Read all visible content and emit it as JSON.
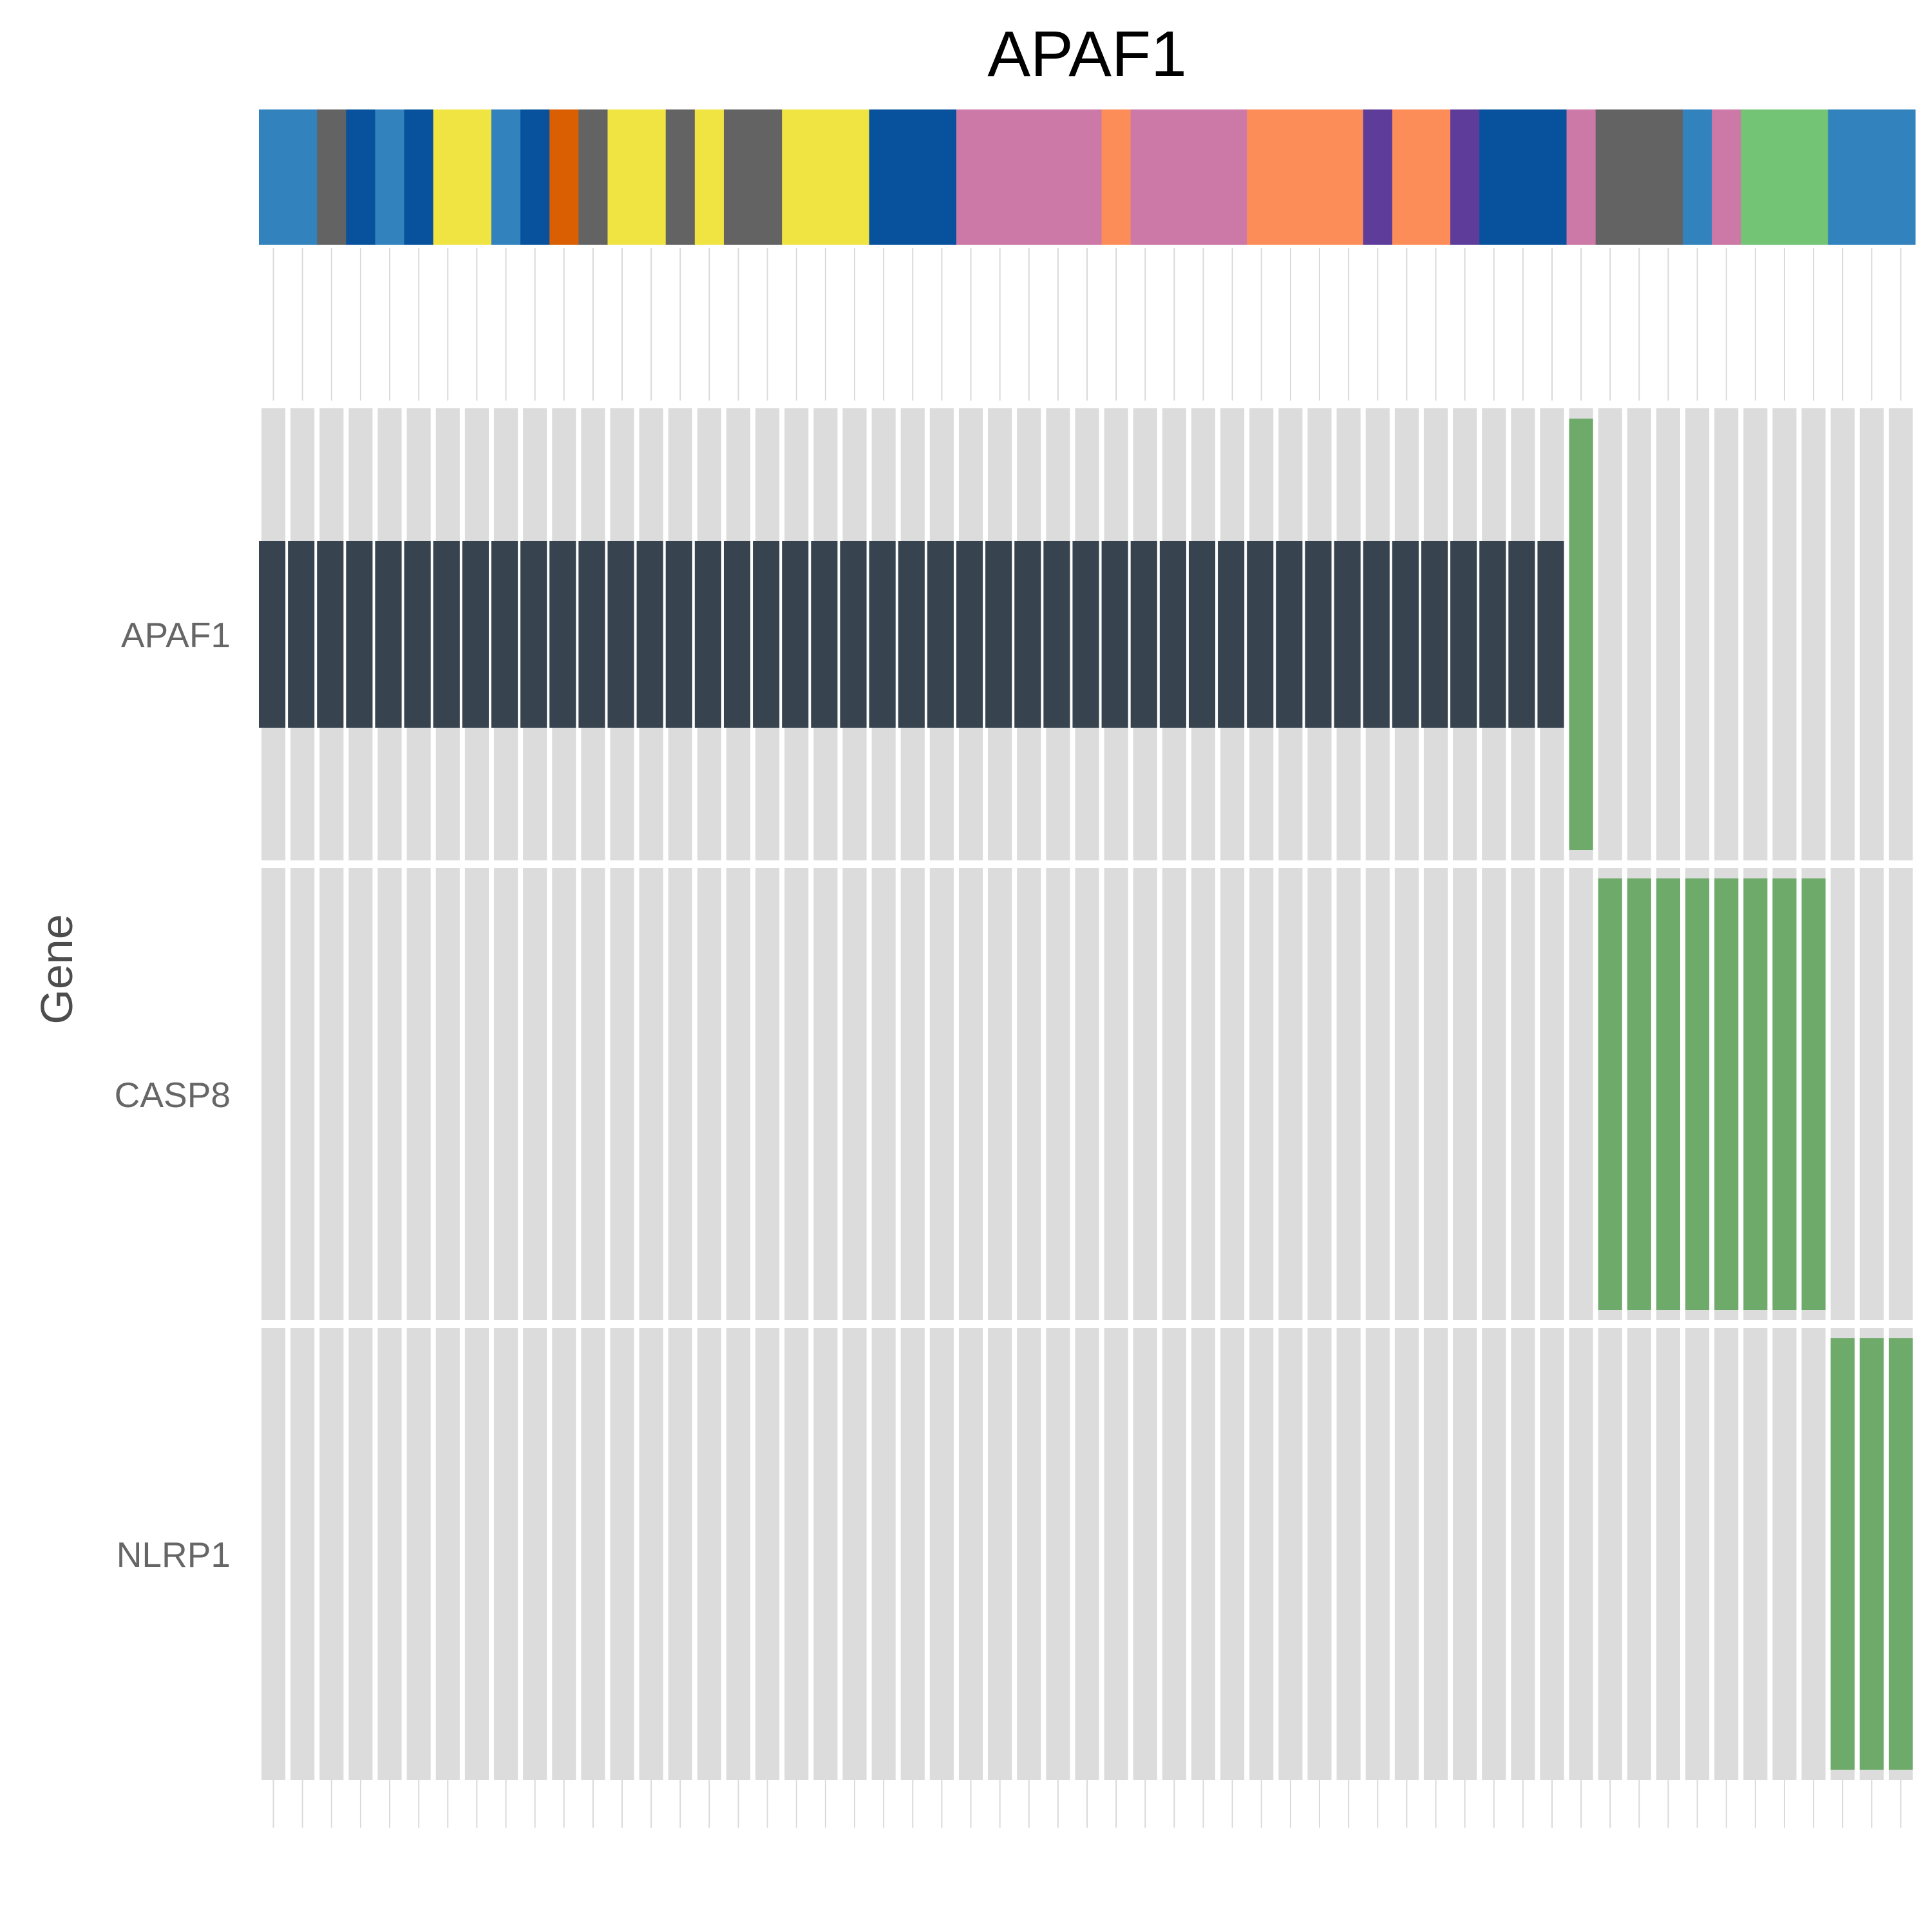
{
  "chart_data": {
    "type": "heatmap",
    "title": "APAF1",
    "ylabel": "Gene",
    "genes": [
      "APAF1",
      "CASP8",
      "NLRP1"
    ],
    "sample_count": 57,
    "colors": {
      "background_cell": "#dcdcdc",
      "mutation_bar": "#37444f",
      "amplification": "#6eab6b",
      "guide_line": "#d9d9d9"
    },
    "rows": [
      {
        "gene": "APAF1",
        "mutation_samples": [
          0,
          45
        ],
        "amplification_samples": [
          45,
          46
        ]
      },
      {
        "gene": "CASP8",
        "mutation_samples": [],
        "amplification_samples": [
          46,
          54
        ]
      },
      {
        "gene": "NLRP1",
        "mutation_samples": [],
        "amplification_samples": [
          54,
          57
        ]
      }
    ],
    "annotation_track": [
      {
        "count": 2,
        "color": "#3182bd"
      },
      {
        "count": 1,
        "color": "#636363"
      },
      {
        "count": 1,
        "color": "#08519c"
      },
      {
        "count": 1,
        "color": "#3182bd"
      },
      {
        "count": 1,
        "color": "#08519c"
      },
      {
        "count": 2,
        "color": "#f0e442"
      },
      {
        "count": 1,
        "color": "#3182bd"
      },
      {
        "count": 1,
        "color": "#08519c"
      },
      {
        "count": 1,
        "color": "#d95f02"
      },
      {
        "count": 1,
        "color": "#636363"
      },
      {
        "count": 2,
        "color": "#f0e442"
      },
      {
        "count": 1,
        "color": "#636363"
      },
      {
        "count": 1,
        "color": "#f0e442"
      },
      {
        "count": 2,
        "color": "#636363"
      },
      {
        "count": 3,
        "color": "#f0e442"
      },
      {
        "count": 3,
        "color": "#08519c"
      },
      {
        "count": 5,
        "color": "#cc79a7"
      },
      {
        "count": 1,
        "color": "#fc8d59"
      },
      {
        "count": 4,
        "color": "#cc79a7"
      },
      {
        "count": 4,
        "color": "#fc8d59"
      },
      {
        "count": 1,
        "color": "#5e3c99"
      },
      {
        "count": 2,
        "color": "#fc8d59"
      },
      {
        "count": 1,
        "color": "#5e3c99"
      },
      {
        "count": 3,
        "color": "#08519c"
      },
      {
        "count": 1,
        "color": "#cc79a7"
      },
      {
        "count": 3,
        "color": "#636363"
      },
      {
        "count": 1,
        "color": "#3182bd"
      },
      {
        "count": 1,
        "color": "#cc79a7"
      },
      {
        "count": 3,
        "color": "#74c476"
      },
      {
        "count": 3,
        "color": "#3182bd"
      }
    ]
  }
}
